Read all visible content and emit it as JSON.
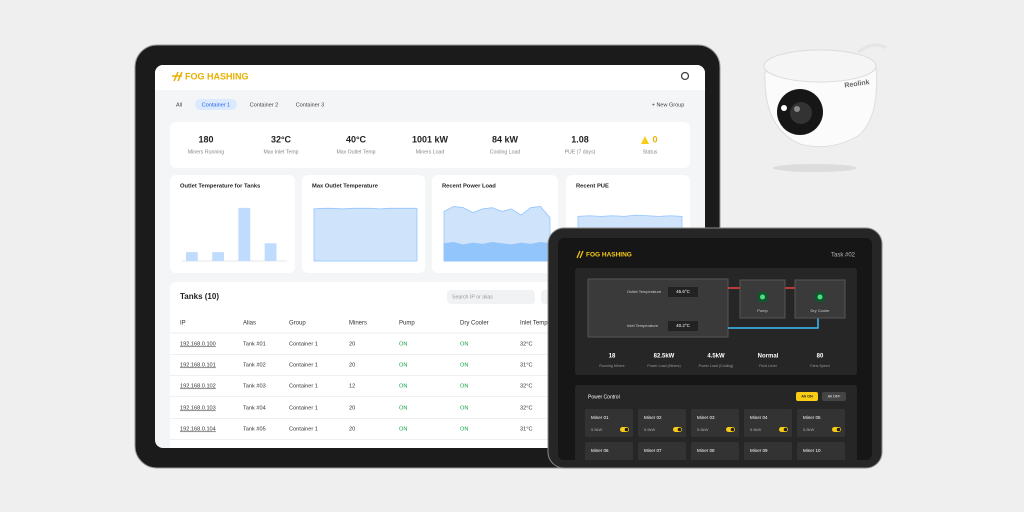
{
  "camera": {
    "brand": "Reolink"
  },
  "dashboard": {
    "logo": "FOG HASHING",
    "tabs": [
      "All",
      "Container 1",
      "Container 2",
      "Container 3"
    ],
    "new_group": "+ New Group",
    "stats": [
      {
        "value": "180",
        "label": "Miners Running"
      },
      {
        "value": "32°C",
        "label": "Max Inlet Temp"
      },
      {
        "value": "40°C",
        "label": "Max Outlet Temp"
      },
      {
        "value": "1001 kW",
        "label": "Miners Load"
      },
      {
        "value": "84 kW",
        "label": "Cooling Load"
      },
      {
        "value": "1.08",
        "label": "PUE (7 days)"
      },
      {
        "value": "0",
        "label": "Status"
      }
    ],
    "charts": [
      {
        "type": "bar",
        "title": "Outlet Temperature for Tanks",
        "values": [
          10,
          10,
          60,
          20
        ],
        "ylim": [
          0,
          70
        ],
        "color": "#bfdbfe"
      },
      {
        "type": "area",
        "title": "Max Outlet Temperature",
        "ylim": [
          0,
          100
        ],
        "series": [
          {
            "color": "#cfe3fb",
            "values": [
              84,
              85,
              85,
              84,
              85,
              85,
              85,
              84,
              85,
              85,
              85,
              85
            ]
          }
        ]
      },
      {
        "type": "area",
        "title": "Recent Power Load",
        "ylim": [
          0,
          100
        ],
        "series": [
          {
            "color": "#cfe3fb",
            "values": [
              80,
              88,
              86,
              78,
              84,
              86,
              80,
              84,
              74,
              86,
              88,
              70
            ]
          },
          {
            "color": "#93c5fd",
            "values": [
              28,
              30,
              26,
              29,
              27,
              30,
              28,
              26,
              29,
              27,
              30,
              28
            ]
          }
        ]
      },
      {
        "type": "area",
        "title": "Recent PUE",
        "ylim": [
          0,
          100
        ],
        "series": [
          {
            "color": "#cfe3fb",
            "values": [
              72,
              73,
              72,
              73,
              72,
              74,
              73,
              72,
              73,
              72
            ]
          }
        ]
      }
    ],
    "table": {
      "title": "Tanks (10)",
      "search": "Search IP or alias",
      "columns": [
        "IP",
        "Alias",
        "Group",
        "Miners",
        "Pump",
        "Dry Cooler",
        "Inlet Temp"
      ],
      "rows": [
        [
          "192.168.0.100",
          "Tank #01",
          "Container 1",
          "20",
          "ON",
          "ON",
          "32°C"
        ],
        [
          "192.168.0.101",
          "Tank #02",
          "Container 1",
          "20",
          "ON",
          "ON",
          "31°C"
        ],
        [
          "192.168.0.102",
          "Tank #03",
          "Container 1",
          "12",
          "ON",
          "ON",
          "32°C"
        ],
        [
          "192.168.0.103",
          "Tank #04",
          "Container 1",
          "20",
          "ON",
          "ON",
          "32°C"
        ],
        [
          "192.168.0.104",
          "Tank #05",
          "Container 1",
          "20",
          "ON",
          "ON",
          "31°C"
        ]
      ]
    }
  },
  "task": {
    "logo": "FOG HASHING",
    "title": "Task #02",
    "outlet_label": "Outlet Temperature",
    "outlet_value": "45.6°C",
    "inlet_label": "Inlet Temperature",
    "inlet_value": "40.2°C",
    "pump": "Pump",
    "dry_cooler": "Dry Cooler",
    "stats": [
      {
        "value": "18",
        "label": "Running Miners"
      },
      {
        "value": "82.5kW",
        "label": "Power Load (Miners)"
      },
      {
        "value": "4.5kW",
        "label": "Power Load (Cooling)"
      },
      {
        "value": "Normal",
        "label": "Fluid Level"
      },
      {
        "value": "80",
        "label": "Fans Speed"
      }
    ],
    "power_control": "Power Control",
    "all_on": "All ON",
    "all_off": "All OFF",
    "miners": [
      {
        "name": "Miner 01",
        "load": "5.5kW"
      },
      {
        "name": "Miner 02",
        "load": "5.5kW"
      },
      {
        "name": "Miner 03",
        "load": "5.5kW"
      },
      {
        "name": "Miner 04",
        "load": "5.5kW"
      },
      {
        "name": "Miner 05",
        "load": "5.5kW"
      }
    ],
    "miners_row2": [
      "Miner 06",
      "Miner 07",
      "Miner 08",
      "Miner 09",
      "Miner 10"
    ]
  }
}
